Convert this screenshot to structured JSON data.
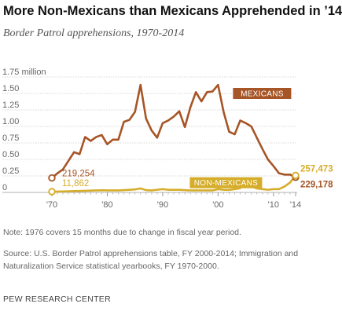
{
  "title": "More Non-Mexicans than Mexicans Apprehended in ’14",
  "subtitle": "Border Patrol apprehensions, 1970-2014",
  "note": "Note: 1976 covers 15 months due to change in fiscal year period.",
  "source": "Source: U.S. Border Patrol apprehensions table, FY 2000-2014; Immigration and Naturalization Service statistical yearbooks, FY 1970-2000.",
  "footer": "PEW RESEARCH CENTER",
  "colors": {
    "mexicans": "#a65526",
    "non_mexicans": "#d6ad2a",
    "grid": "#d8d8d8",
    "text": "#666666"
  },
  "chart_data": {
    "type": "line",
    "title": "More Non-Mexicans than Mexicans Apprehended in ’14",
    "subtitle": "Border Patrol apprehensions, 1970-2014",
    "xlabel": "",
    "ylabel": "",
    "units": "millions",
    "xlim": [
      1970,
      2014
    ],
    "ylim": [
      0,
      1.75
    ],
    "grid": true,
    "legend": "inline labels on series",
    "x_tick_labels": [
      {
        "value": 1970,
        "label": "'70"
      },
      {
        "value": 1980,
        "label": "'80"
      },
      {
        "value": 1990,
        "label": "'90"
      },
      {
        "value": 2000,
        "label": "'00"
      },
      {
        "value": 2010,
        "label": "'10"
      },
      {
        "value": 2014,
        "label": "'14"
      }
    ],
    "y_tick_labels": [
      {
        "value": 1.75,
        "label": "1.75 million"
      },
      {
        "value": 1.5,
        "label": "1.50"
      },
      {
        "value": 1.25,
        "label": "1.25"
      },
      {
        "value": 1.0,
        "label": "1.00"
      },
      {
        "value": 0.75,
        "label": "0.75"
      },
      {
        "value": 0.5,
        "label": "0.50"
      },
      {
        "value": 0.25,
        "label": "0.25"
      },
      {
        "value": 0,
        "label": "0"
      }
    ],
    "x": [
      1970,
      1971,
      1972,
      1973,
      1974,
      1975,
      1976,
      1977,
      1978,
      1979,
      1980,
      1981,
      1982,
      1983,
      1984,
      1985,
      1986,
      1987,
      1988,
      1989,
      1990,
      1991,
      1992,
      1993,
      1994,
      1995,
      1996,
      1997,
      1998,
      1999,
      2000,
      2001,
      2002,
      2003,
      2004,
      2005,
      2006,
      2007,
      2008,
      2009,
      2010,
      2011,
      2012,
      2013,
      2014
    ],
    "series": [
      {
        "name": "MEXICANS",
        "values": [
          0.219254,
          0.29,
          0.35,
          0.48,
          0.61,
          0.58,
          0.84,
          0.78,
          0.84,
          0.87,
          0.73,
          0.8,
          0.8,
          1.07,
          1.1,
          1.22,
          1.63,
          1.12,
          0.94,
          0.83,
          1.05,
          1.09,
          1.15,
          1.23,
          0.99,
          1.29,
          1.52,
          1.38,
          1.52,
          1.53,
          1.63,
          1.22,
          0.92,
          0.88,
          1.09,
          1.05,
          1.0,
          0.83,
          0.66,
          0.5,
          0.4,
          0.29,
          0.27,
          0.27,
          0.229178
        ],
        "start_label": "219,254",
        "end_label": "229,178",
        "color": "#a65526"
      },
      {
        "name": "NON-MEXICANS",
        "values": [
          0.011862,
          0.013,
          0.015,
          0.018,
          0.02,
          0.022,
          0.025,
          0.028,
          0.03,
          0.033,
          0.03,
          0.03,
          0.031,
          0.035,
          0.04,
          0.045,
          0.06,
          0.035,
          0.031,
          0.04,
          0.05,
          0.04,
          0.04,
          0.04,
          0.035,
          0.03,
          0.03,
          0.03,
          0.03,
          0.03,
          0.05,
          0.04,
          0.038,
          0.05,
          0.065,
          0.165,
          0.09,
          0.06,
          0.05,
          0.04,
          0.05,
          0.05,
          0.09,
          0.15,
          0.257473
        ],
        "start_label": "11,862",
        "end_label": "257,473",
        "color": "#d6ad2a"
      }
    ]
  }
}
